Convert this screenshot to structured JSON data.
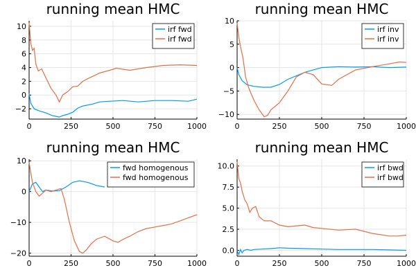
{
  "colors": {
    "blue": "#009AFA",
    "orange": "#E26F46",
    "grid": "#e6e6e6"
  },
  "chart_data": [
    {
      "type": "line",
      "title": "running mean HMC",
      "xlim": [
        0,
        1000
      ],
      "ylim": [
        -3.5,
        10.8
      ],
      "xticks": [
        0,
        250,
        500,
        750,
        1000
      ],
      "xtick_labels": [
        "0",
        "250",
        "500",
        "750",
        "1000"
      ],
      "yticks": [
        -2,
        0,
        2,
        4,
        6,
        8,
        10
      ],
      "ytick_labels": [
        "−2",
        "0",
        "2",
        "4",
        "6",
        "8",
        "10"
      ],
      "grid": true,
      "legend": "top-right",
      "series": [
        {
          "name": "irf fwd",
          "color": "blue",
          "x": [
            0,
            10,
            30,
            60,
            100,
            140,
            180,
            200,
            230,
            260,
            290,
            320,
            380,
            420,
            480,
            560,
            650,
            750,
            850,
            950,
            1000
          ],
          "y": [
            0.2,
            -1.2,
            -2.0,
            -2.3,
            -2.6,
            -3.0,
            -3.2,
            -3.0,
            -2.8,
            -2.5,
            -1.9,
            -1.6,
            -1.3,
            -1.0,
            -0.9,
            -0.8,
            -1.0,
            -0.8,
            -0.8,
            -0.9,
            -0.6
          ]
        },
        {
          "name": "irf fwd",
          "color": "orange",
          "x": [
            0,
            10,
            20,
            30,
            40,
            55,
            75,
            100,
            130,
            160,
            180,
            200,
            230,
            260,
            290,
            320,
            360,
            420,
            480,
            520,
            600,
            700,
            800,
            900,
            1000
          ],
          "y": [
            10.5,
            7.5,
            6.5,
            6.8,
            4.5,
            3.5,
            3.8,
            2.5,
            1.0,
            0.0,
            -1.0,
            0.0,
            0.5,
            1.2,
            1.3,
            2.0,
            2.5,
            3.2,
            3.6,
            3.9,
            3.6,
            4.0,
            4.3,
            4.4,
            4.3
          ]
        }
      ]
    },
    {
      "type": "line",
      "title": "running mean HMC",
      "xlim": [
        0,
        1000
      ],
      "ylim": [
        -11,
        10
      ],
      "xticks": [
        0,
        250,
        500,
        750,
        1000
      ],
      "xtick_labels": [
        "0",
        "250",
        "500",
        "750",
        "1000"
      ],
      "yticks": [
        -10,
        -5,
        0,
        5,
        10
      ],
      "ytick_labels": [
        "−10",
        "−5",
        "0",
        "5",
        "10"
      ],
      "grid": true,
      "legend": "top-right",
      "series": [
        {
          "name": "irf inv",
          "color": "blue",
          "x": [
            0,
            10,
            30,
            60,
            100,
            150,
            200,
            250,
            300,
            400,
            500,
            600,
            700,
            800,
            900,
            1000
          ],
          "y": [
            0.0,
            -1.5,
            -2.8,
            -3.7,
            -4.0,
            -4.2,
            -4.2,
            -3.6,
            -2.5,
            -1.0,
            0.0,
            0.2,
            0.1,
            0.2,
            0.0,
            0.1
          ]
        },
        {
          "name": "irf inv",
          "color": "orange",
          "x": [
            0,
            10,
            20,
            35,
            50,
            70,
            100,
            130,
            160,
            180,
            200,
            250,
            300,
            350,
            400,
            450,
            500,
            560,
            600,
            700,
            800,
            900,
            960,
            1000
          ],
          "y": [
            9.5,
            6.5,
            4.5,
            2.0,
            -2.0,
            -4.5,
            -7.0,
            -9.0,
            -10.5,
            -10.2,
            -9.0,
            -7.5,
            -5.0,
            -2.0,
            -1.0,
            -1.5,
            -3.5,
            -3.8,
            -2.5,
            -0.5,
            0.2,
            0.8,
            1.2,
            1.1
          ]
        }
      ]
    },
    {
      "type": "line",
      "title": "running mean HMC",
      "xlim": [
        0,
        1000
      ],
      "ylim": [
        -21,
        10.5
      ],
      "xticks": [
        0,
        250,
        500,
        750,
        1000
      ],
      "xtick_labels": [
        "0",
        "250",
        "500",
        "750",
        "1000"
      ],
      "yticks": [
        -20,
        -10,
        0,
        10
      ],
      "ytick_labels": [
        "−20",
        "−10",
        "0",
        "10"
      ],
      "grid": true,
      "legend": "top-right",
      "series": [
        {
          "name": "fwd homogenous",
          "color": "blue",
          "x": [
            0,
            20,
            40,
            60,
            80,
            100,
            140,
            180,
            220,
            260,
            300,
            330,
            360,
            400,
            450
          ],
          "y": [
            0.0,
            2.5,
            3.0,
            1.5,
            0.0,
            0.5,
            0.2,
            0.3,
            1.5,
            3.0,
            3.5,
            3.2,
            2.8,
            2.0,
            1.5
          ]
        },
        {
          "name": "fwd homogenous",
          "color": "orange",
          "x": [
            0,
            10,
            20,
            40,
            60,
            80,
            100,
            130,
            160,
            190,
            210,
            240,
            270,
            300,
            320,
            340,
            370,
            400,
            450,
            500,
            530,
            560,
            600,
            650,
            700,
            750,
            800,
            850,
            900,
            950,
            1000
          ],
          "y": [
            9.5,
            6.0,
            3.0,
            0.0,
            -1.5,
            -0.5,
            0.5,
            0.0,
            0.5,
            1.0,
            -2.5,
            -10.0,
            -16.0,
            -19.5,
            -20.0,
            -19.0,
            -17.0,
            -15.5,
            -14.5,
            -16.0,
            -16.5,
            -15.5,
            -14.5,
            -13.0,
            -12.0,
            -11.5,
            -11.0,
            -10.5,
            -9.5,
            -8.5,
            -7.5
          ]
        }
      ]
    },
    {
      "type": "line",
      "title": "running mean HMC",
      "xlim": [
        0,
        1000
      ],
      "ylim": [
        -0.7,
        10.8
      ],
      "xticks": [
        0,
        250,
        500,
        750,
        1000
      ],
      "xtick_labels": [
        "0",
        "250",
        "500",
        "750",
        "1000"
      ],
      "yticks": [
        0.0,
        2.5,
        5.0,
        7.5,
        10.0
      ],
      "ytick_labels": [
        "0.0",
        "2.5",
        "5.0",
        "7.5",
        "10.0"
      ],
      "grid": true,
      "legend": "top-right",
      "series": [
        {
          "name": "irf bwd",
          "color": "blue",
          "x": [
            0,
            10,
            20,
            30,
            40,
            60,
            80,
            100,
            150,
            200,
            250,
            300,
            400,
            500,
            600,
            700,
            800,
            900,
            1000
          ],
          "y": [
            0.0,
            -0.5,
            0.1,
            -0.3,
            0.0,
            0.1,
            0.0,
            0.1,
            0.15,
            0.2,
            0.3,
            0.25,
            0.2,
            0.15,
            0.1,
            0.1,
            0.1,
            0.05,
            0.0
          ]
        },
        {
          "name": "irf bwd",
          "color": "orange",
          "x": [
            0,
            10,
            20,
            30,
            45,
            60,
            75,
            90,
            110,
            130,
            160,
            200,
            250,
            300,
            400,
            450,
            500,
            600,
            700,
            800,
            900,
            950,
            1000
          ],
          "y": [
            10.5,
            8.5,
            8.0,
            7.0,
            6.0,
            5.5,
            4.5,
            5.0,
            5.2,
            4.0,
            3.5,
            3.5,
            3.0,
            2.8,
            3.0,
            2.7,
            2.6,
            2.4,
            2.5,
            2.0,
            1.7,
            1.7,
            1.8
          ]
        }
      ]
    }
  ]
}
